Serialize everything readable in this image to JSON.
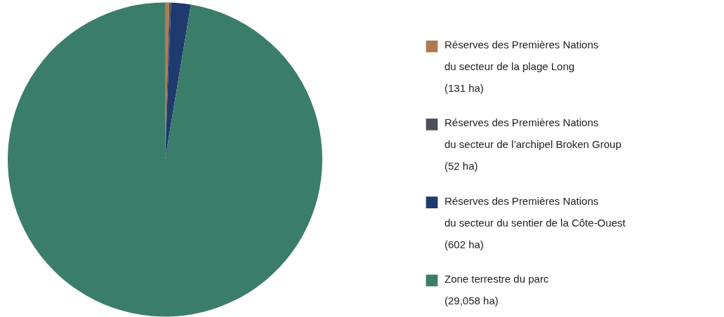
{
  "chart_data": {
    "type": "pie",
    "categories": [
      "Réserves des Premières Nations\ndu secteur de la plage Long\n(131 ha)",
      "Réserves des Premières Nations\ndu secteur de l’archipel Broken Group\n(52 ha)",
      "Réserves des Premières Nations\ndu secteur du sentier de la Côte-Ouest\n(602 ha)",
      "Zone terrestre du parc\n(29,058 ha)"
    ],
    "values": [
      131,
      52,
      602,
      29058
    ],
    "colors": [
      "#b07a4f",
      "#4b5059",
      "#1f3a6e",
      "#3a7d6a"
    ],
    "legend": "right"
  }
}
